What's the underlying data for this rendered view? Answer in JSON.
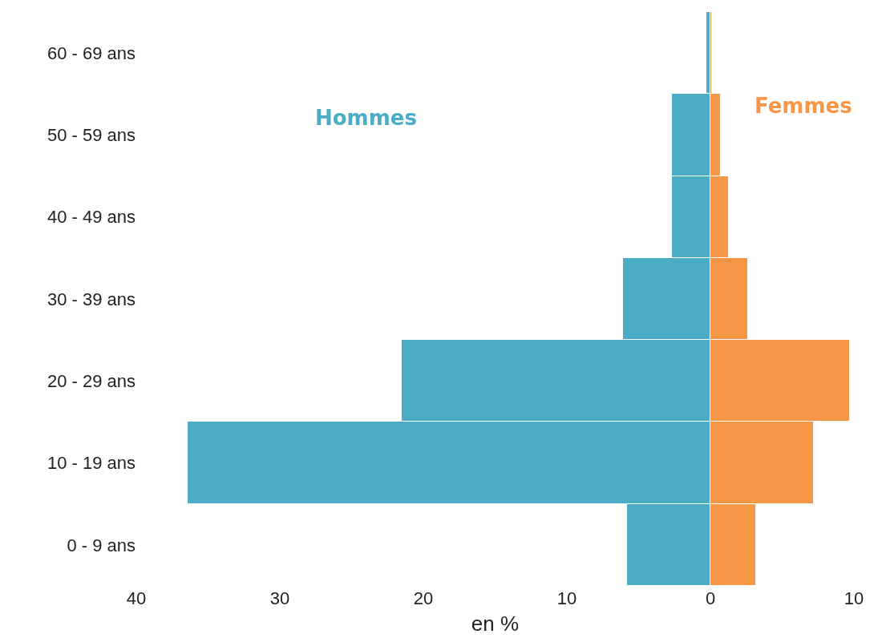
{
  "chart_data": {
    "type": "bar",
    "orientation": "horizontal",
    "stacked": true,
    "xlabel": "en %",
    "categories": [
      "60 - 69 ans",
      "50 - 59 ans",
      "40 - 49 ans",
      "30 - 39 ans",
      "20 - 29 ans",
      "10 - 19 ans",
      "0 - 9 ans"
    ],
    "series": [
      {
        "name": "Hommes",
        "color": "#4bacc6",
        "values": [
          -0.3,
          -2.7,
          -2.7,
          -6.1,
          -21.5,
          -36.4,
          -5.8
        ]
      },
      {
        "name": "Femmes",
        "color": "#f79646",
        "values": [
          0.1,
          0.7,
          1.3,
          2.6,
          9.7,
          7.2,
          3.2
        ]
      }
    ],
    "xlim": [
      -40,
      10
    ],
    "xticks": [
      {
        "value": -40,
        "label": "40"
      },
      {
        "value": -30,
        "label": "30"
      },
      {
        "value": -20,
        "label": "20"
      },
      {
        "value": -10,
        "label": "10"
      },
      0,
      10
    ],
    "legend": false
  }
}
